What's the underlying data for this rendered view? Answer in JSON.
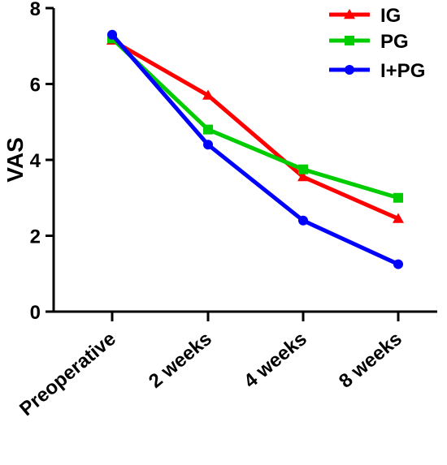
{
  "chart_data": {
    "type": "line",
    "categories": [
      "Preoperative",
      "2 weeks",
      "4 weeks",
      "8 weeks"
    ],
    "ylabel": "VAS",
    "xlabel": "",
    "ylim": [
      0,
      8
    ],
    "yticks": [
      0,
      2,
      4,
      6,
      8
    ],
    "grid": false,
    "legend_position": "top-right",
    "series": [
      {
        "name": "IG",
        "values": [
          7.15,
          5.7,
          3.55,
          2.45
        ],
        "color": "#ff0000",
        "marker": "triangle"
      },
      {
        "name": "PG",
        "values": [
          7.2,
          4.8,
          3.75,
          3.0
        ],
        "color": "#00cc00",
        "marker": "square"
      },
      {
        "name": "I+PG",
        "values": [
          7.3,
          4.4,
          2.4,
          1.25
        ],
        "color": "#0000ff",
        "marker": "circle"
      }
    ]
  }
}
